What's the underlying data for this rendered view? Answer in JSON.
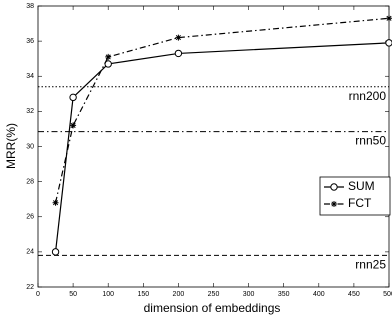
{
  "chart_data": {
    "type": "line",
    "xlabel": "dimension of embeddings",
    "ylabel": "MRR(%)",
    "x": [
      25,
      50,
      100,
      200,
      500
    ],
    "series": [
      {
        "name": "SUM",
        "color": "#000000",
        "marker": "circle",
        "line_style": "solid",
        "values": [
          24.0,
          32.8,
          34.7,
          35.3,
          35.9
        ]
      },
      {
        "name": "FCT",
        "color": "#000000",
        "marker": "star",
        "line_style": "dashdot",
        "values": [
          26.8,
          31.2,
          35.1,
          36.2,
          37.3
        ]
      }
    ],
    "reference_lines": [
      {
        "name": "rnn200",
        "value": 33.4,
        "line_style": "dotted"
      },
      {
        "name": "rnn50",
        "value": 30.85,
        "line_style": "dashdot"
      },
      {
        "name": "rnn25",
        "value": 23.8,
        "line_style": "dashed"
      }
    ],
    "xlim": [
      0,
      500
    ],
    "xticks": [
      0,
      50,
      100,
      150,
      200,
      250,
      300,
      350,
      400,
      450,
      500
    ],
    "ylim": [
      22,
      38
    ],
    "yticks": [
      22,
      24,
      26,
      28,
      30,
      32,
      34,
      36,
      38
    ],
    "legend": "right"
  }
}
